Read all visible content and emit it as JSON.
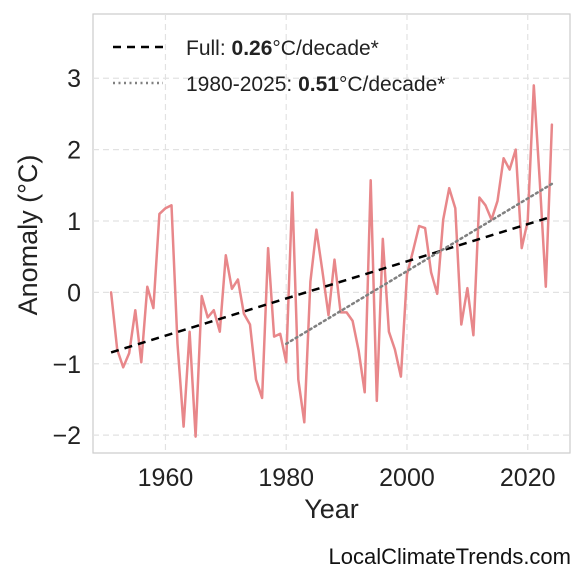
{
  "chart_data": {
    "type": "line",
    "xlabel": "Year",
    "ylabel": "Anomaly (°C)",
    "xlim": [
      1948,
      2027
    ],
    "ylim": [
      -2.25,
      3.9
    ],
    "grid": true,
    "legend_position": "top-left",
    "x_ticks": [
      {
        "value": 1960,
        "label": "1960"
      },
      {
        "value": 1980,
        "label": "1980"
      },
      {
        "value": 2000,
        "label": "2000"
      },
      {
        "value": 2020,
        "label": "2020"
      }
    ],
    "y_ticks": [
      {
        "value": -2,
        "label": "−2"
      },
      {
        "value": -1,
        "label": "−1"
      },
      {
        "value": 0,
        "label": "0"
      },
      {
        "value": 1,
        "label": "1"
      },
      {
        "value": 2,
        "label": "2"
      },
      {
        "value": 3,
        "label": "3"
      }
    ],
    "series": [
      {
        "color": "#e8878a",
        "x": [
          1951,
          1952,
          1953,
          1954,
          1955,
          1956,
          1957,
          1958,
          1959,
          1960,
          1961,
          1962,
          1963,
          1964,
          1965,
          1966,
          1967,
          1968,
          1969,
          1970,
          1971,
          1972,
          1973,
          1974,
          1975,
          1976,
          1977,
          1978,
          1979,
          1980,
          1981,
          1982,
          1983,
          1984,
          1985,
          1986,
          1987,
          1988,
          1989,
          1990,
          1991,
          1992,
          1993,
          1994,
          1995,
          1996,
          1997,
          1998,
          1999,
          2000,
          2001,
          2002,
          2003,
          2004,
          2005,
          2006,
          2007,
          2008,
          2009,
          2010,
          2011,
          2012,
          2013,
          2014,
          2015,
          2016,
          2017,
          2018,
          2019,
          2020,
          2021,
          2022,
          2023,
          2024
        ],
        "y": [
          0.0,
          -0.8,
          -1.05,
          -0.85,
          -0.25,
          -0.98,
          0.08,
          -0.22,
          1.1,
          1.18,
          1.22,
          -0.72,
          -1.88,
          -0.55,
          -2.02,
          -0.05,
          -0.35,
          -0.25,
          -0.55,
          0.52,
          0.05,
          0.18,
          -0.3,
          -0.45,
          -1.22,
          -1.48,
          0.62,
          -0.62,
          -0.58,
          -0.98,
          1.4,
          -1.22,
          -1.82,
          0.15,
          0.88,
          0.3,
          -0.32,
          0.46,
          -0.28,
          -0.28,
          -0.4,
          -0.82,
          -1.4,
          1.57,
          -1.52,
          0.75,
          -0.55,
          -0.8,
          -1.18,
          0.25,
          0.58,
          0.93,
          0.9,
          0.28,
          -0.02,
          1.02,
          1.46,
          1.18,
          -0.45,
          0.06,
          -0.6,
          1.33,
          1.22,
          1.02,
          1.28,
          1.88,
          1.72,
          2.0,
          0.62,
          1.0,
          2.9,
          1.55,
          0.08,
          2.35
        ]
      },
      {
        "name": "Full",
        "style": "dashed",
        "color": "#000000",
        "x": [
          1951,
          2024
        ],
        "y": [
          -0.84,
          1.06
        ]
      },
      {
        "name": "1980-2025",
        "style": "dotted",
        "color": "#808080",
        "x": [
          1980,
          2024
        ],
        "y": [
          -0.72,
          1.52
        ]
      }
    ],
    "legend": [
      {
        "prefix": "Full: ",
        "value": "0.26",
        "suffix": "°C/decade*",
        "style": "dashed",
        "color": "#000000"
      },
      {
        "prefix": "1980-2025: ",
        "value": "0.51",
        "suffix": "°C/decade*",
        "style": "dotted",
        "color": "#808080"
      }
    ]
  },
  "footer": {
    "credit": "LocalClimateTrends.com"
  }
}
